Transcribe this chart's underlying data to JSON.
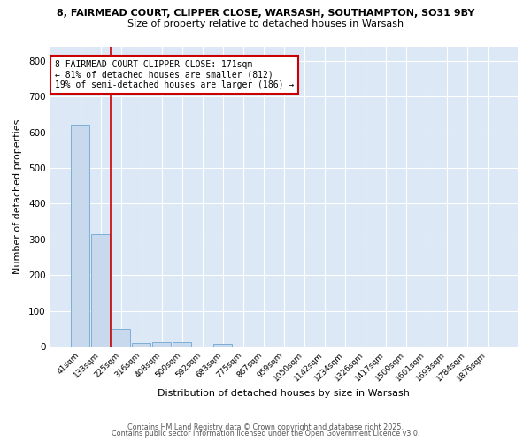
{
  "title_line1": "8, FAIRMEAD COURT, CLIPPER CLOSE, WARSASH, SOUTHAMPTON, SO31 9BY",
  "title_line2": "Size of property relative to detached houses in Warsash",
  "xlabel": "Distribution of detached houses by size in Warsash",
  "ylabel": "Number of detached properties",
  "bar_labels": [
    "41sqm",
    "133sqm",
    "225sqm",
    "316sqm",
    "408sqm",
    "500sqm",
    "592sqm",
    "683sqm",
    "775sqm",
    "867sqm",
    "959sqm",
    "1050sqm",
    "1142sqm",
    "1234sqm",
    "1326sqm",
    "1417sqm",
    "1509sqm",
    "1601sqm",
    "1693sqm",
    "1784sqm",
    "1876sqm"
  ],
  "bar_values": [
    620,
    315,
    50,
    10,
    12,
    12,
    0,
    8,
    0,
    0,
    0,
    0,
    0,
    0,
    0,
    0,
    0,
    0,
    0,
    0,
    0
  ],
  "bar_color": "#c8d9ee",
  "bar_edge_color": "#7bafd4",
  "vline_x": 1.5,
  "vline_color": "#cc0000",
  "annotation_line1": "8 FAIRMEAD COURT CLIPPER CLOSE: 171sqm",
  "annotation_line2": "← 81% of detached houses are smaller (812)",
  "annotation_line3": "19% of semi-detached houses are larger (186) →",
  "annotation_box_color": "#ffffff",
  "annotation_border_color": "#cc0000",
  "plot_bg_color": "#dce8f5",
  "figure_bg_color": "#ffffff",
  "grid_color": "#ffffff",
  "footer_line1": "Contains HM Land Registry data © Crown copyright and database right 2025.",
  "footer_line2": "Contains public sector information licensed under the Open Government Licence v3.0.",
  "ylim": [
    0,
    840
  ],
  "yticks": [
    0,
    100,
    200,
    300,
    400,
    500,
    600,
    700,
    800
  ]
}
